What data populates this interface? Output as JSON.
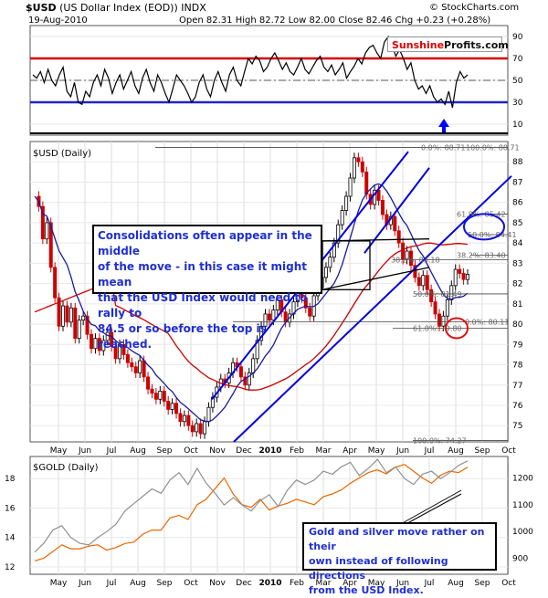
{
  "header": {
    "symbol": "$USD",
    "name": "(US Dollar Index (EOD))",
    "exchange": "INDX",
    "copyright": "© StockCharts.com",
    "date": "19-Aug-2010",
    "ohlc": "Open 82.31  High 82.72  Low 82.00  Close 82.46  Chg +0.23 (+0.28%)"
  },
  "logo": {
    "part1": "Sunshine",
    "part2": "Profits.com"
  },
  "annotations": {
    "consolidation": [
      "Consolidations often appear in the middle",
      "of the move - in this case it might mean",
      "that the USD Index would need to rally to",
      "84.5 or so before the top is reached."
    ],
    "gold": [
      "Gold and silver move rather on their",
      "own instead of following directions",
      "from the USD Index."
    ]
  },
  "colors": {
    "price_up": "#000000",
    "price_down": "#cc0000",
    "ma_50": "#1a1aa0",
    "ma_200": "#cc0000",
    "gold": "#ee6600",
    "silver": "#909090",
    "annotation": "#1f2fd0",
    "trend": "#0000dd"
  },
  "chart_data": [
    {
      "type": "line",
      "panel": "RSI",
      "yticks": [
        10,
        30,
        50,
        70,
        90
      ],
      "ylim": [
        0,
        100
      ],
      "reference_lines": [
        70,
        50,
        30
      ],
      "values": [
        55,
        52,
        58,
        48,
        60,
        50,
        45,
        55,
        62,
        40,
        35,
        48,
        30,
        28,
        40,
        35,
        48,
        55,
        45,
        60,
        52,
        38,
        48,
        55,
        42,
        50,
        58,
        45,
        38,
        52,
        60,
        48,
        40,
        55,
        48,
        38,
        30,
        42,
        55,
        50,
        45,
        38,
        30,
        35,
        48,
        55,
        42,
        35,
        50,
        58,
        48,
        40,
        55,
        62,
        50,
        45,
        58,
        70,
        65,
        72,
        68,
        58,
        62,
        70,
        75,
        68,
        60,
        66,
        58,
        55,
        62,
        70,
        60,
        56,
        62,
        68,
        72,
        62,
        58,
        64,
        55,
        60,
        66,
        52,
        58,
        63,
        70,
        65,
        75,
        80,
        82,
        75,
        70,
        85,
        90,
        82,
        72,
        78,
        70,
        60,
        66,
        50,
        42,
        45,
        38,
        45,
        35,
        30,
        33,
        28,
        40,
        25,
        48,
        58,
        52,
        55
      ]
    },
    {
      "type": "line",
      "panel": "$USD (Daily)",
      "months": [
        "May",
        "Jun",
        "Jul",
        "Aug",
        "Sep",
        "Oct",
        "Nov",
        "Dec",
        "2010",
        "Feb",
        "Mar",
        "Apr",
        "May",
        "Jun",
        "Jul",
        "Aug",
        "Sep",
        "Oct"
      ],
      "yticks": [
        75,
        76,
        77,
        78,
        79,
        80,
        81,
        82,
        83,
        84,
        85,
        86,
        87,
        88
      ],
      "ylim": [
        74.2,
        89.0
      ],
      "close": [
        86.3,
        85.8,
        84.2,
        85.0,
        82.8,
        81.3,
        79.9,
        80.9,
        80.1,
        80.8,
        79.3,
        80.2,
        80.4,
        79.5,
        78.8,
        79.3,
        78.7,
        79.2,
        79.6,
        78.9,
        78.3,
        79.0,
        78.5,
        78.1,
        77.9,
        77.6,
        78.2,
        77.4,
        76.8,
        76.6,
        76.3,
        76.7,
        76.2,
        75.8,
        76.1,
        75.6,
        75.2,
        75.5,
        75.0,
        74.7,
        75.1,
        74.6,
        75.2,
        75.9,
        76.4,
        76.9,
        77.3,
        77.1,
        77.6,
        78.1,
        77.9,
        77.4,
        77.0,
        77.6,
        78.3,
        79.2,
        79.9,
        80.5,
        80.2,
        80.7,
        81.2,
        80.6,
        80.1,
        80.5,
        81.1,
        81.7,
        81.3,
        80.8,
        80.4,
        81.4,
        81.8,
        82.3,
        82.8,
        83.3,
        84.0,
        84.9,
        85.6,
        86.3,
        87.2,
        88.2,
        88.0,
        87.5,
        86.4,
        85.9,
        86.6,
        86.1,
        85.4,
        84.9,
        85.3,
        84.6,
        84.0,
        83.2,
        83.6,
        82.9,
        82.3,
        81.9,
        82.4,
        81.7,
        81.1,
        80.5,
        79.9,
        80.4,
        81.2,
        81.9,
        82.7,
        82.5,
        82.2,
        82.46
      ],
      "annotations_fib": [
        "0.0%: 88.71",
        "100.0%: 88.71",
        "61.8%: 85.42",
        "50.0%: 84.41",
        "38.2%: 83.40",
        "38.2%: 83.18",
        "50.0%: 81.49",
        "0.0%: 80.11",
        "61.8%: 79.80",
        "100.0%: 74.27"
      ]
    },
    {
      "type": "line",
      "panel": "$GOLD (Daily)",
      "months": [
        "May",
        "Jun",
        "Jul",
        "Aug",
        "Sep",
        "Oct",
        "Nov",
        "Dec",
        "2010",
        "Feb",
        "Mar",
        "Apr",
        "May",
        "Jun",
        "Jul",
        "Aug",
        "Sep",
        "Oct"
      ],
      "yticks_left": [
        12,
        14,
        16,
        18
      ],
      "ylim_left": [
        11.5,
        19.5
      ],
      "yticks_right": [
        900,
        1000,
        1100,
        1200
      ],
      "ylim_right": [
        840,
        1280
      ],
      "series": [
        {
          "name": "gold",
          "axis": "right",
          "values": [
            890,
            900,
            925,
            950,
            935,
            935,
            945,
            950,
            930,
            940,
            955,
            960,
            990,
            1005,
            1005,
            1050,
            1060,
            1045,
            1100,
            1120,
            1160,
            1200,
            1140,
            1100,
            1090,
            1120,
            1080,
            1095,
            1105,
            1120,
            1110,
            1100,
            1130,
            1140,
            1155,
            1180,
            1200,
            1220,
            1230,
            1215,
            1240,
            1250,
            1225,
            1200,
            1180,
            1210,
            1225,
            1220,
            1240
          ]
        },
        {
          "name": "silver",
          "axis": "left",
          "values": [
            13.0,
            13.6,
            14.5,
            14.8,
            14.0,
            13.6,
            13.5,
            14.0,
            14.4,
            14.9,
            15.8,
            16.3,
            16.8,
            17.3,
            17.0,
            17.9,
            18.4,
            17.6,
            18.7,
            17.7,
            17.0,
            16.2,
            16.7,
            16.2,
            15.8,
            16.5,
            16.9,
            16.1,
            17.2,
            17.9,
            17.6,
            17.9,
            18.5,
            18.3,
            18.8,
            19.1,
            18.2,
            18.7,
            19.3,
            18.4,
            18.8,
            18.0,
            17.6,
            18.3,
            18.5,
            18.0,
            18.4,
            18.9,
            19.2
          ]
        }
      ]
    }
  ]
}
